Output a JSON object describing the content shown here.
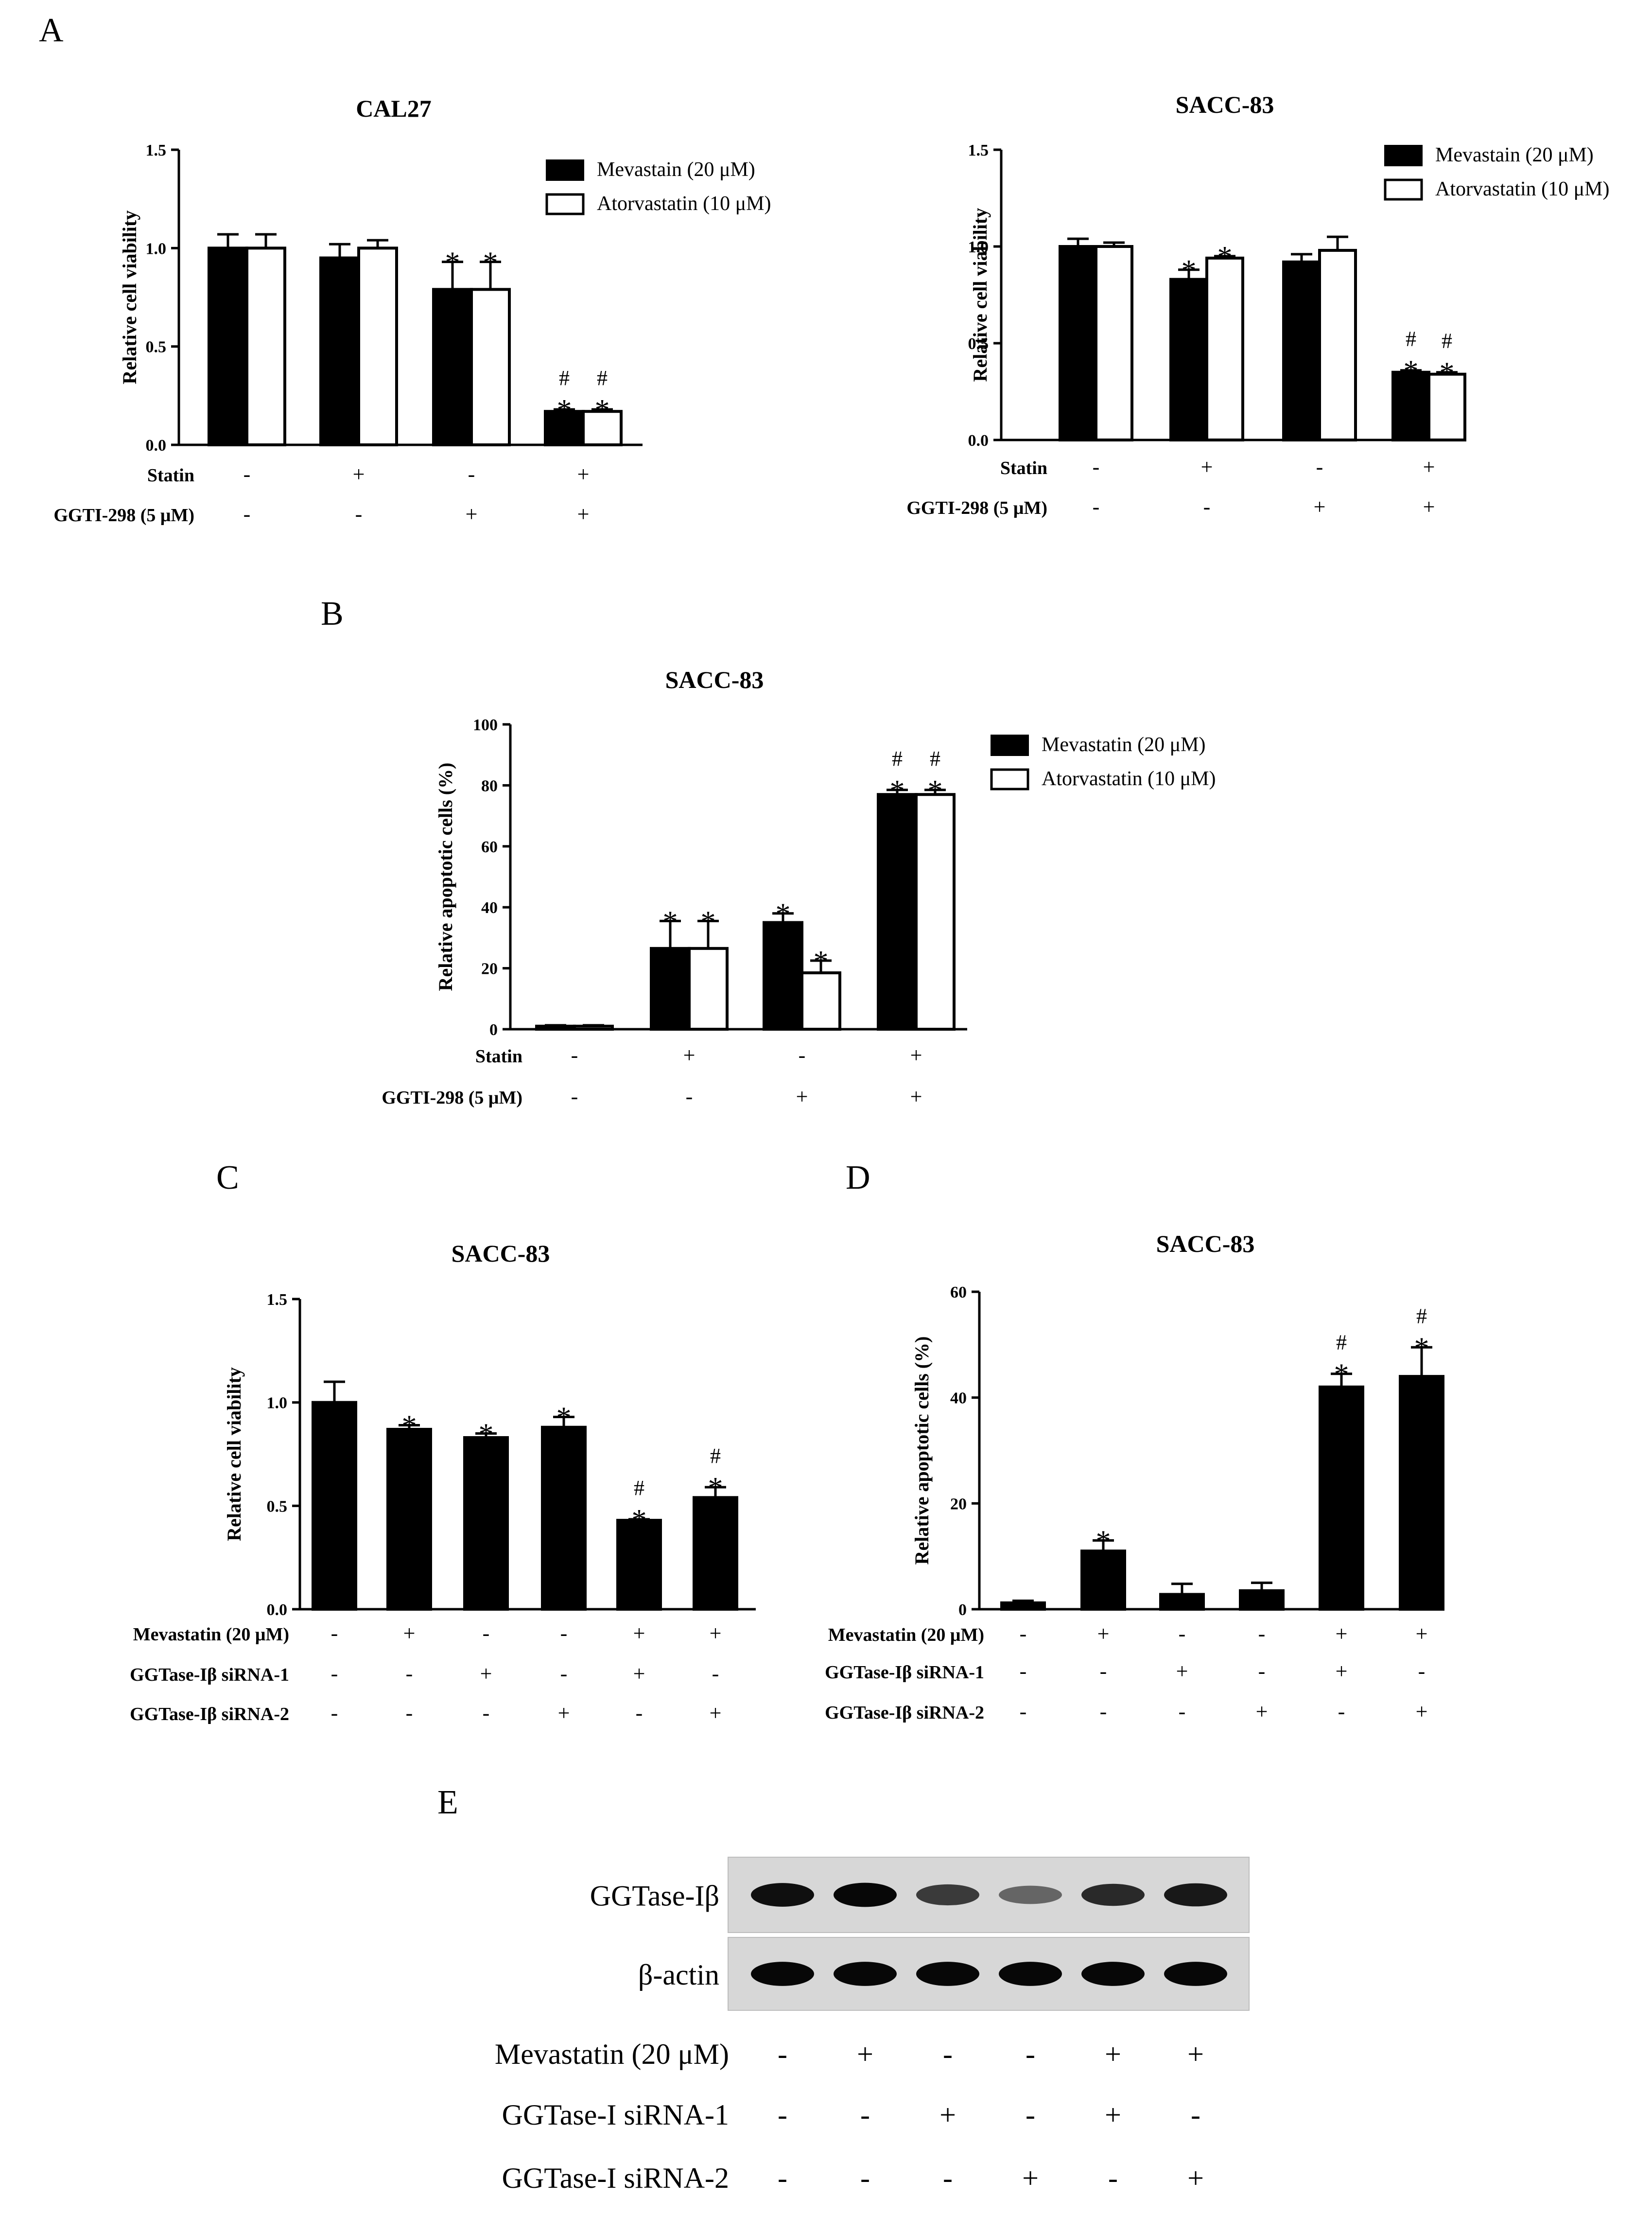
{
  "panels": {
    "A": "A",
    "B": "B",
    "C": "C",
    "D": "D",
    "E": "E"
  },
  "legend": {
    "mevastain": "Mevastain (20 μM)",
    "mevastatin": "Mevastatin (20 μM)",
    "atorvastatin": "Atorvastatin (10 μM)"
  },
  "chart_data": [
    {
      "id": "A1",
      "type": "bar",
      "title": "CAL27",
      "ylabel": "Relative cell viability",
      "ylim": [
        0,
        1.5
      ],
      "yticks": [
        "0.0",
        "0.5",
        "1.0",
        "1.5"
      ],
      "series": [
        {
          "name": "Mevastain (20 μM)",
          "fill": "#000000",
          "values": [
            1.0,
            0.95,
            0.79,
            0.17
          ],
          "errors": [
            0.07,
            0.07,
            0.14,
            0.01
          ],
          "marks": [
            [],
            [],
            [
              "*"
            ],
            [
              "*",
              "#"
            ]
          ]
        },
        {
          "name": "Atorvastatin (10 μM)",
          "fill": "#ffffff",
          "values": [
            1.0,
            1.0,
            0.79,
            0.17
          ],
          "errors": [
            0.07,
            0.04,
            0.14,
            0.01
          ],
          "marks": [
            [],
            [],
            [
              "*"
            ],
            [
              "*",
              "#"
            ]
          ]
        }
      ],
      "conditions": [
        {
          "label": "Statin",
          "values": [
            "-",
            "+",
            "-",
            "+"
          ]
        },
        {
          "label": "GGTI-298 (5 μM)",
          "values": [
            "-",
            "-",
            "+",
            "+"
          ]
        }
      ]
    },
    {
      "id": "A2",
      "type": "bar",
      "title": "SACC-83",
      "ylabel": "Relative cell viability",
      "ylim": [
        0,
        1.5
      ],
      "yticks": [
        "0.0",
        "0.5",
        "1.0",
        "1.5"
      ],
      "series": [
        {
          "name": "Mevastain (20 μM)",
          "fill": "#000000",
          "values": [
            1.0,
            0.83,
            0.92,
            0.35
          ],
          "errors": [
            0.04,
            0.05,
            0.04,
            0.01
          ],
          "marks": [
            [],
            [
              "*"
            ],
            [],
            [
              "*",
              "#"
            ]
          ]
        },
        {
          "name": "Atorvastatin (10 μM)",
          "fill": "#ffffff",
          "values": [
            1.0,
            0.94,
            0.98,
            0.34
          ],
          "errors": [
            0.02,
            0.01,
            0.07,
            0.01
          ],
          "marks": [
            [],
            [
              "*"
            ],
            [],
            [
              "*",
              "#"
            ]
          ]
        }
      ],
      "conditions": [
        {
          "label": "Statin",
          "values": [
            "-",
            "+",
            "-",
            "+"
          ]
        },
        {
          "label": "GGTI-298 (5 μM)",
          "values": [
            "-",
            "-",
            "+",
            "+"
          ]
        }
      ]
    },
    {
      "id": "B",
      "type": "bar",
      "title": "SACC-83",
      "ylabel": "Relative apoptotic cells (%)",
      "ylim": [
        0,
        100
      ],
      "yticks": [
        "0",
        "20",
        "40",
        "60",
        "80",
        "100"
      ],
      "series": [
        {
          "name": "Mevastatin (20 μM)",
          "fill": "#000000",
          "values": [
            1,
            26.5,
            35,
            77
          ],
          "errors": [
            0.3,
            9,
            3,
            1.5
          ],
          "marks": [
            [],
            [
              "*"
            ],
            [
              "*"
            ],
            [
              "*",
              "#"
            ]
          ]
        },
        {
          "name": "Atorvastatin (10 μM)",
          "fill": "#ffffff",
          "values": [
            1,
            26.5,
            18.5,
            77
          ],
          "errors": [
            0.3,
            9,
            4,
            1.5
          ],
          "marks": [
            [],
            [
              "*"
            ],
            [
              "*"
            ],
            [
              "*",
              "#"
            ]
          ]
        }
      ],
      "conditions": [
        {
          "label": "Statin",
          "values": [
            "-",
            "+",
            "-",
            "+"
          ]
        },
        {
          "label": "GGTI-298 (5 μM)",
          "values": [
            "-",
            "-",
            "+",
            "+"
          ]
        }
      ]
    },
    {
      "id": "C",
      "type": "bar",
      "title": "SACC-83",
      "ylabel": "Relative cell viability",
      "ylim": [
        0,
        1.5
      ],
      "yticks": [
        "0.0",
        "0.5",
        "1.0",
        "1.5"
      ],
      "series": [
        {
          "name": "",
          "fill": "#000000",
          "values": [
            1.0,
            0.87,
            0.83,
            0.88,
            0.43,
            0.54
          ],
          "errors": [
            0.1,
            0.02,
            0.02,
            0.05,
            0.005,
            0.05
          ],
          "marks": [
            [],
            [
              "*"
            ],
            [
              "*"
            ],
            [
              "*"
            ],
            [
              "*",
              "#"
            ],
            [
              "*",
              "#"
            ]
          ]
        }
      ],
      "conditions": [
        {
          "label": "Mevastatin (20 μM)",
          "values": [
            "-",
            "+",
            "-",
            "-",
            "+",
            "+"
          ]
        },
        {
          "label": "GGTase-Iβ  siRNA-1",
          "values": [
            "-",
            "-",
            "+",
            "-",
            "+",
            "-"
          ]
        },
        {
          "label": "GGTase-Iβ  siRNA-2",
          "values": [
            "-",
            "-",
            "-",
            "+",
            "-",
            "+"
          ]
        }
      ]
    },
    {
      "id": "D",
      "type": "bar",
      "title": "SACC-83",
      "ylabel": "Relative apoptotic cells (%)",
      "ylim": [
        0,
        60
      ],
      "yticks": [
        "0",
        "20",
        "40",
        "60"
      ],
      "series": [
        {
          "name": "",
          "fill": "#000000",
          "values": [
            1.2,
            11,
            2.8,
            3.5,
            42,
            44
          ],
          "errors": [
            0.4,
            2,
            2,
            1.5,
            2.5,
            5.5
          ],
          "marks": [
            [],
            [
              "*"
            ],
            [],
            [],
            [
              "*",
              "#"
            ],
            [
              "*",
              "#"
            ]
          ]
        }
      ],
      "conditions": [
        {
          "label": "Mevastatin (20 μM)",
          "values": [
            "-",
            "+",
            "-",
            "-",
            "+",
            "+"
          ]
        },
        {
          "label": "GGTase-Iβ siRNA-1",
          "values": [
            "-",
            "-",
            "+",
            "-",
            "+",
            "-"
          ]
        },
        {
          "label": "GGTase-Iβ siRNA-2",
          "values": [
            "-",
            "-",
            "-",
            "+",
            "-",
            "+"
          ]
        }
      ]
    }
  ],
  "blot": {
    "rows": [
      {
        "label": "GGTase-Iβ",
        "intensity": [
          0.85,
          0.9,
          0.6,
          0.35,
          0.7,
          0.8
        ]
      },
      {
        "label": "β-actin",
        "intensity": [
          0.9,
          0.9,
          0.9,
          0.9,
          0.9,
          0.9
        ]
      }
    ],
    "conditions": [
      {
        "label": "Mevastatin  (20 μM)",
        "values": [
          "-",
          "+",
          "-",
          "-",
          "+",
          "+"
        ]
      },
      {
        "label": "GGTase-I siRNA-1",
        "values": [
          "-",
          "-",
          "+",
          "-",
          "+",
          "-"
        ]
      },
      {
        "label": "GGTase-I siRNA-2",
        "values": [
          "-",
          "-",
          "-",
          "+",
          "-",
          "+"
        ]
      }
    ]
  }
}
